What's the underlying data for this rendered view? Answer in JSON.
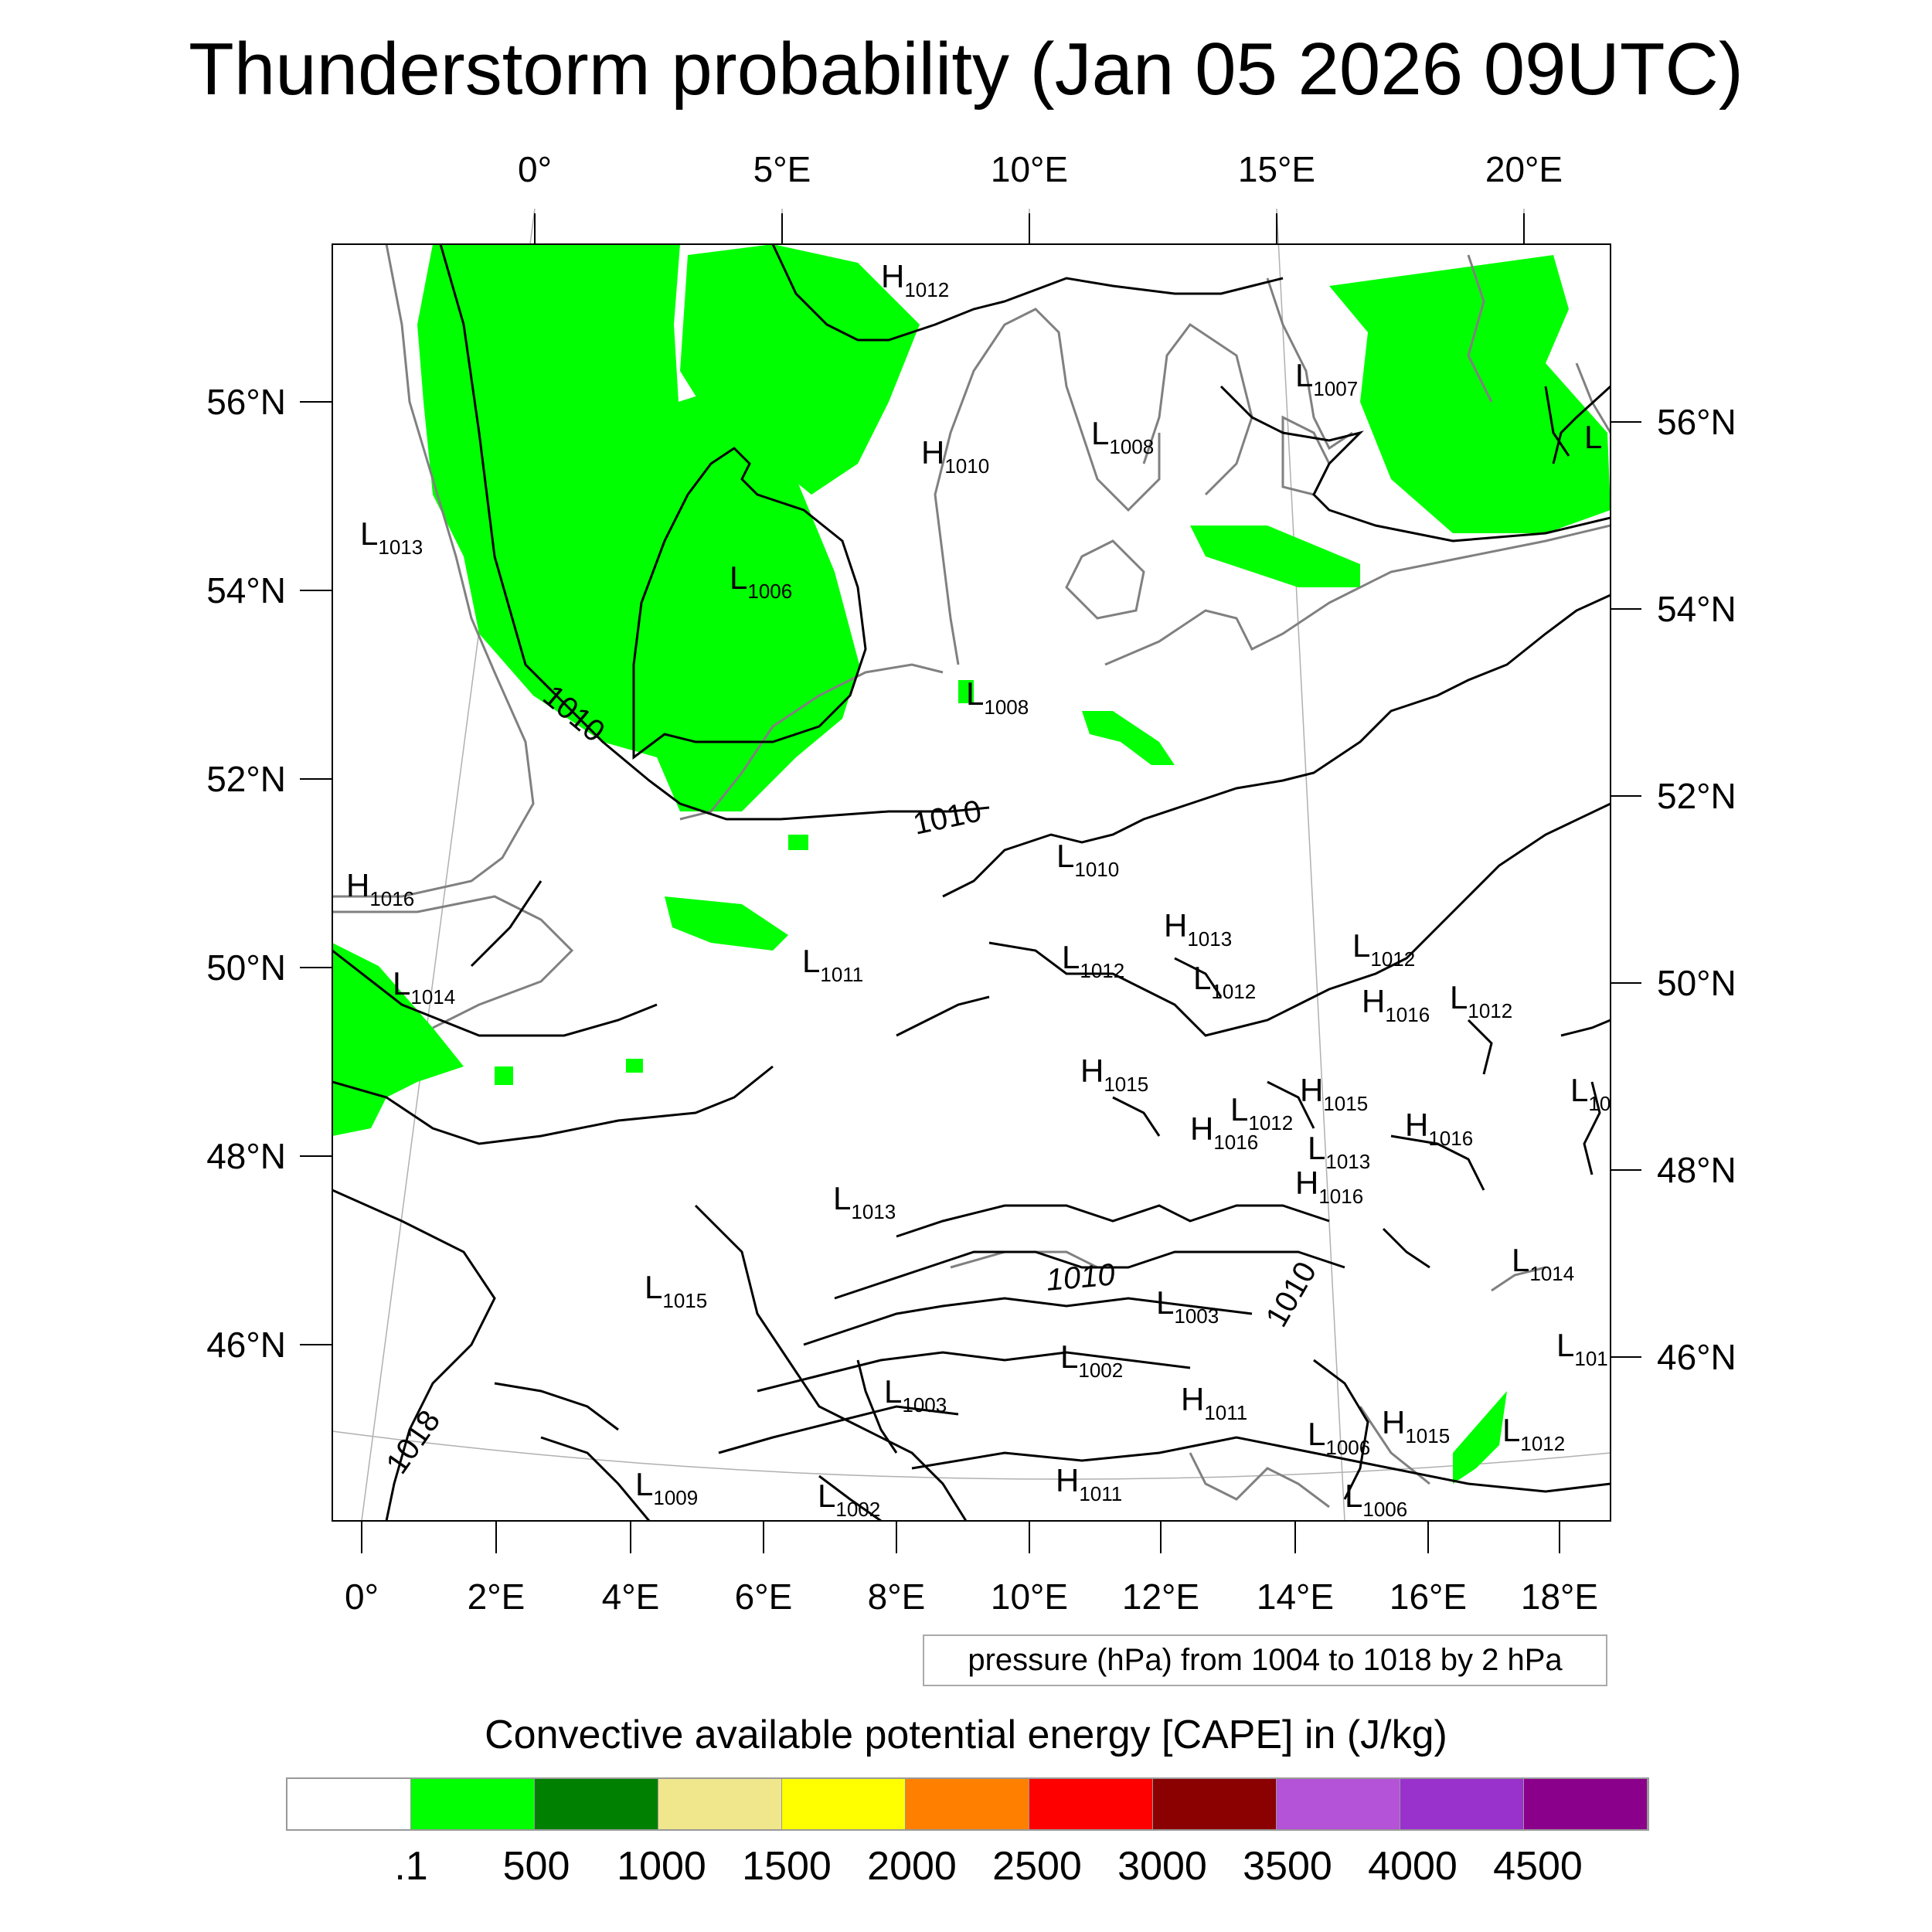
{
  "title": "Thunderstorm probability (Jan 05 2026 09UTC)",
  "map": {
    "top_lon_ticks": [
      "0°",
      "5°E",
      "10°E",
      "15°E",
      "20°E"
    ],
    "bottom_lon_ticks": [
      "0°",
      "2°E",
      "4°E",
      "6°E",
      "8°E",
      "10°E",
      "12°E",
      "14°E",
      "16°E",
      "18°E"
    ],
    "left_lat_ticks": [
      "56°N",
      "54°N",
      "52°N",
      "50°N",
      "48°N",
      "46°N"
    ],
    "right_lat_ticks": [
      "56°N",
      "54°N",
      "52°N",
      "50°N",
      "48°N",
      "46°N"
    ],
    "contour_labels": [
      "1010",
      "1010",
      "1010",
      "1010",
      "1018"
    ],
    "pressure_centers": [
      {
        "t": "H",
        "v": "1012"
      },
      {
        "t": "L",
        "v": "1007"
      },
      {
        "t": "L",
        "v": ""
      },
      {
        "t": "L",
        "v": "1008"
      },
      {
        "t": "H",
        "v": "1010"
      },
      {
        "t": "L",
        "v": "1013"
      },
      {
        "t": "L",
        "v": "1006"
      },
      {
        "t": "L",
        "v": "1008"
      },
      {
        "t": "L",
        "v": "1010"
      },
      {
        "t": "H",
        "v": "1016"
      },
      {
        "t": "L",
        "v": "1014"
      },
      {
        "t": "L",
        "v": "1011"
      },
      {
        "t": "L",
        "v": "1012"
      },
      {
        "t": "H",
        "v": "1013"
      },
      {
        "t": "L",
        "v": "1012"
      },
      {
        "t": "L",
        "v": "1012"
      },
      {
        "t": "H",
        "v": "1016"
      },
      {
        "t": "L",
        "v": "1012"
      },
      {
        "t": "H",
        "v": "1015"
      },
      {
        "t": "H",
        "v": "1015"
      },
      {
        "t": "L",
        "v": "10"
      },
      {
        "t": "L",
        "v": "1012"
      },
      {
        "t": "H",
        "v": "1016"
      },
      {
        "t": "H",
        "v": "1016"
      },
      {
        "t": "L",
        "v": "1013"
      },
      {
        "t": "H",
        "v": "1016"
      },
      {
        "t": "L",
        "v": "1013"
      },
      {
        "t": "L",
        "v": "1014"
      },
      {
        "t": "L",
        "v": "1015"
      },
      {
        "t": "L",
        "v": "1003"
      },
      {
        "t": "L",
        "v": "101"
      },
      {
        "t": "L",
        "v": "1002"
      },
      {
        "t": "L",
        "v": "1003"
      },
      {
        "t": "H",
        "v": "1011"
      },
      {
        "t": "H",
        "v": "1015"
      },
      {
        "t": "L",
        "v": "1012"
      },
      {
        "t": "L",
        "v": "1006"
      },
      {
        "t": "L",
        "v": "1009"
      },
      {
        "t": "L",
        "v": "1002"
      },
      {
        "t": "H",
        "v": "1011"
      },
      {
        "t": "L",
        "v": "1006"
      }
    ]
  },
  "pressure_note": "pressure (hPa) from 1004 to 1018 by 2 hPa",
  "colorbar": {
    "title": "Convective available potential energy [CAPE] in (J/kg)",
    "colors": [
      "#ffffff",
      "#00ff00",
      "#008000",
      "#f0e68c",
      "#ffff00",
      "#ff8000",
      "#ff0000",
      "#8b0000",
      "#b452d8",
      "#9932cc",
      "#8b008b"
    ],
    "labels": [
      ".1",
      "500",
      "1000",
      "1500",
      "2000",
      "2500",
      "3000",
      "3500",
      "4000",
      "4500"
    ]
  },
  "colors": {
    "cape_green": "#00ff00",
    "coast": "#808080",
    "contour": "#000000"
  }
}
